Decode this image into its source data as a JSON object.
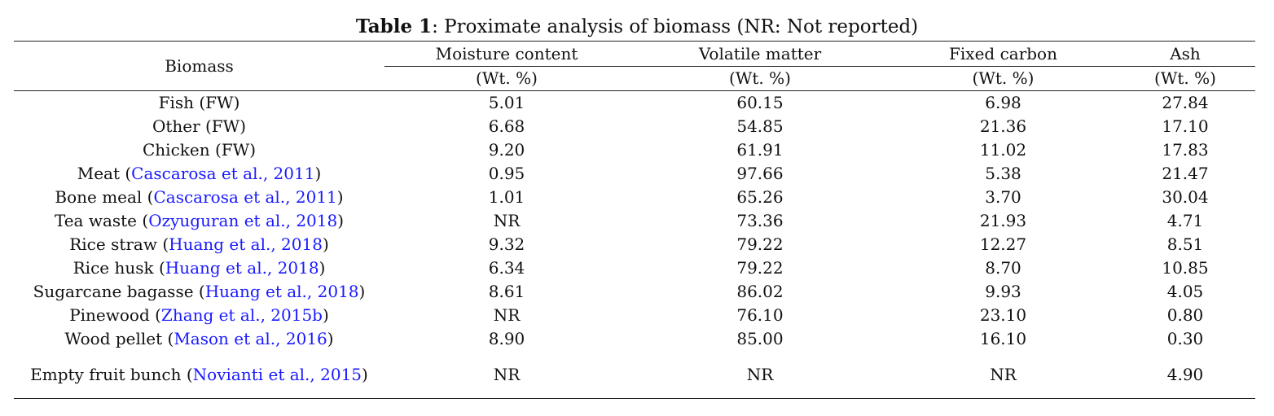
{
  "caption": {
    "label": "Table 1",
    "text": ": Proximate analysis of biomass (NR: Not reported)"
  },
  "header": {
    "biomass": "Biomass",
    "columns": [
      "Moisture content",
      "Volatile matter",
      "Fixed carbon",
      "Ash"
    ],
    "units": [
      "(Wt. %)",
      "(Wt. %)",
      "(Wt. %)",
      "(Wt. %)"
    ]
  },
  "rows": [
    {
      "name": "Fish (FW)",
      "cite": "",
      "suffix": "",
      "values": [
        "5.01",
        "60.15",
        "6.98",
        "27.84"
      ]
    },
    {
      "name": "Other (FW)",
      "cite": "",
      "suffix": "",
      "values": [
        "6.68",
        "54.85",
        "21.36",
        "17.10"
      ]
    },
    {
      "name": "Chicken (FW)",
      "cite": "",
      "suffix": "",
      "values": [
        "9.20",
        "61.91",
        "11.02",
        "17.83"
      ]
    },
    {
      "name": "Meat (",
      "cite": "Cascarosa et al., 2011",
      "suffix": ")",
      "values": [
        "0.95",
        "97.66",
        "5.38",
        "21.47"
      ]
    },
    {
      "name": "Bone meal (",
      "cite": "Cascarosa et al., 2011",
      "suffix": ")",
      "values": [
        "1.01",
        "65.26",
        "3.70",
        "30.04"
      ]
    },
    {
      "name": "Tea waste (",
      "cite": "Ozyuguran et al., 2018",
      "suffix": ")",
      "values": [
        "NR",
        "73.36",
        "21.93",
        "4.71"
      ]
    },
    {
      "name": "Rice straw (",
      "cite": "Huang et al., 2018",
      "suffix": ")",
      "values": [
        "9.32",
        "79.22",
        "12.27",
        "8.51"
      ]
    },
    {
      "name": "Rice husk (",
      "cite": "Huang et al., 2018",
      "suffix": ")",
      "values": [
        "6.34",
        "79.22",
        "8.70",
        "10.85"
      ]
    },
    {
      "name": "Sugarcane bagasse (",
      "cite": "Huang et al., 2018",
      "suffix": ")",
      "values": [
        "8.61",
        "86.02",
        "9.93",
        "4.05"
      ]
    },
    {
      "name": "Pinewood (",
      "cite": "Zhang et al., 2015b",
      "suffix": ")",
      "values": [
        "NR",
        "76.10",
        "23.10",
        "0.80"
      ]
    },
    {
      "name": "Wood pellet (",
      "cite": "Mason et al., 2016",
      "suffix": ")",
      "values": [
        "8.90",
        "85.00",
        "16.10",
        "0.30"
      ]
    },
    {
      "name": "Empty fruit bunch (",
      "cite": "Novianti et al., 2015",
      "suffix": ")",
      "values": [
        "NR",
        "NR",
        "NR",
        "4.90"
      ]
    }
  ],
  "colors": {
    "citation": "#1a1aff",
    "text": "#111111",
    "rule": "#222222"
  }
}
